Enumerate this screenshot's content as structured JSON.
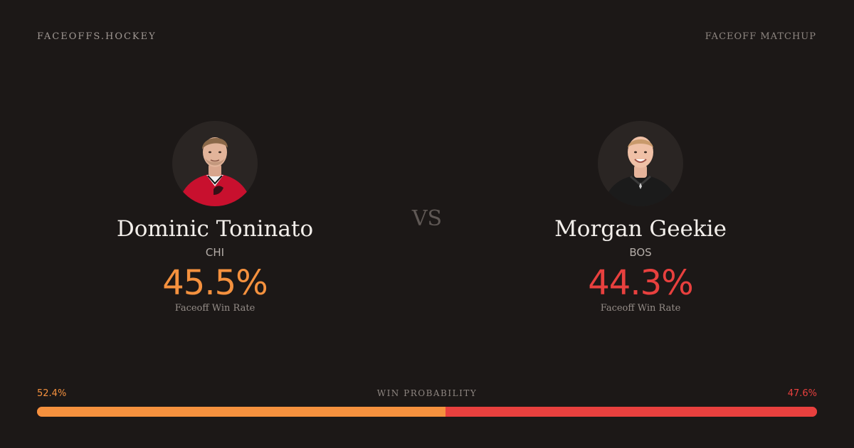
{
  "brand": "FACEOFFS.HOCKEY",
  "header_label": "FACEOFF MATCHUP",
  "vs": "VS",
  "players": [
    {
      "name": "Dominic Toninato",
      "team": "CHI",
      "rate": "45.5%",
      "rate_caption": "Faceoff Win Rate",
      "jersey_color": "#c8102e",
      "rate_color": "#f5913e"
    },
    {
      "name": "Morgan Geekie",
      "team": "BOS",
      "rate": "44.3%",
      "rate_caption": "Faceoff Win Rate",
      "jersey_color": "#1b1b1b",
      "rate_color": "#e8403e"
    }
  ],
  "win_probability": {
    "title": "WIN PROBABILITY",
    "left_label": "52.4%",
    "right_label": "47.6%",
    "left_value": 52.4,
    "right_value": 47.6,
    "left_color": "#f5913e",
    "right_color": "#e8403e"
  }
}
